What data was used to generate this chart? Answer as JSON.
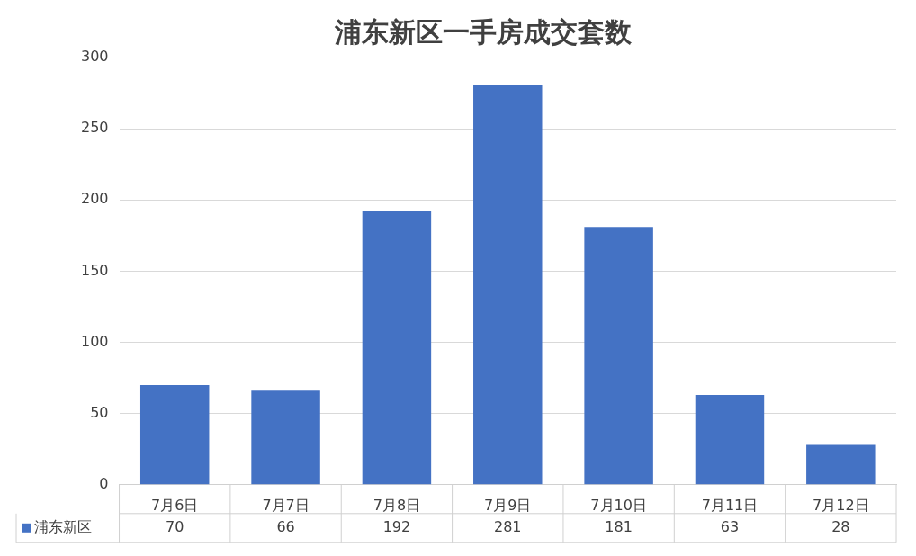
{
  "chart_data": {
    "type": "bar",
    "title": "浦东新区一手房成交套数",
    "categories": [
      "7月6日",
      "7月7日",
      "7月8日",
      "7月9日",
      "7月10日",
      "7月11日",
      "7月12日"
    ],
    "series": [
      {
        "name": "浦东新区",
        "color": "#4472c4",
        "values": [
          70,
          66,
          192,
          281,
          181,
          63,
          28
        ]
      }
    ],
    "ylim": [
      0,
      300
    ],
    "yticks": [
      0,
      50,
      100,
      150,
      200,
      250,
      300
    ],
    "grid": "y",
    "data_labels": true,
    "legend": "bottom"
  }
}
